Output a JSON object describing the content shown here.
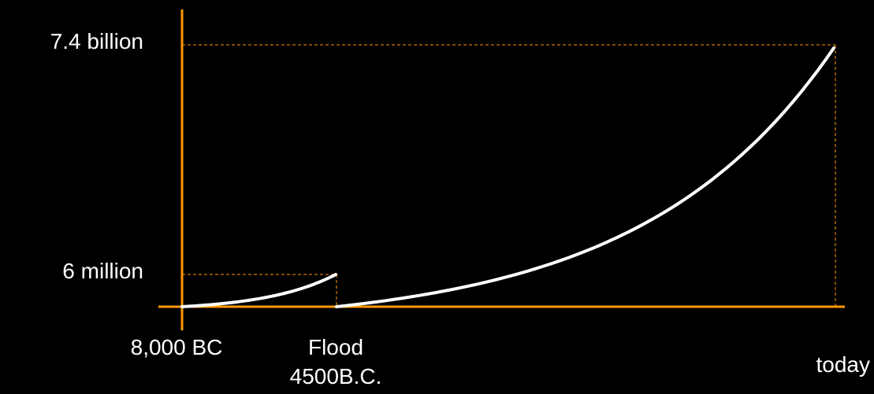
{
  "chart_data": {
    "type": "line",
    "title": "",
    "xlabel": "",
    "ylabel": "",
    "y_scale": "not to scale (schematic)",
    "x_tick_labels": [
      {
        "text": "8,000 BC",
        "at": "start"
      },
      {
        "text": "Flood",
        "at": "flood"
      },
      {
        "text": "4500B.C.",
        "at": "flood"
      },
      {
        "text": "today",
        "at": "end"
      }
    ],
    "y_tick_labels": [
      {
        "text": "7.4 billion",
        "at": "high"
      },
      {
        "text": "6 million",
        "at": "low"
      }
    ],
    "series": [
      {
        "segment": "before-flood",
        "from": {
          "x": "8,000 BC",
          "y": 0
        },
        "to": {
          "x": "4500B.C.",
          "y": "6 million"
        },
        "shape": "exponential-growth"
      },
      {
        "segment": "after-flood",
        "from": {
          "x": "4500B.C.",
          "y": 0
        },
        "to": {
          "x": "today",
          "y": "7.4 billion"
        },
        "shape": "exponential-growth"
      }
    ],
    "reference_lines": "dashed guides from each curve end to both axes",
    "grid": false,
    "legend": "none"
  },
  "colors": {
    "background": "#000000",
    "axis": "#FF9900",
    "curve": "#FFFFFF",
    "text": "#FFFFFF"
  }
}
